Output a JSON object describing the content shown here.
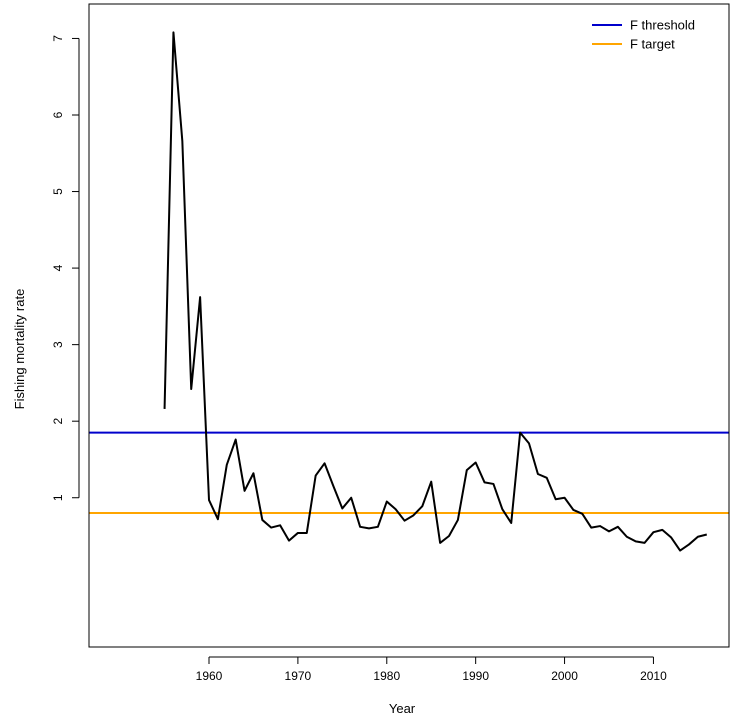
{
  "chart_data": {
    "type": "line",
    "title": "",
    "xlabel": "Year",
    "ylabel": "Fishing mortality rate",
    "xlim": [
      1946.5,
      2018.5
    ],
    "ylim": [
      -0.95,
      7.45
    ],
    "x_ticks": [
      1960,
      1970,
      1980,
      1990,
      2000,
      2010
    ],
    "y_ticks": [
      1,
      2,
      3,
      4,
      5,
      6,
      7
    ],
    "grid": false,
    "legend_position": "top-right",
    "series": [
      {
        "color": "#000000",
        "x": [
          1955,
          1956,
          1957,
          1958,
          1959,
          1960,
          1961,
          1962,
          1963,
          1964,
          1965,
          1966,
          1967,
          1968,
          1969,
          1970,
          1971,
          1972,
          1973,
          1974,
          1975,
          1976,
          1977,
          1978,
          1979,
          1980,
          1981,
          1982,
          1983,
          1984,
          1985,
          1986,
          1987,
          1988,
          1989,
          1990,
          1991,
          1992,
          1993,
          1994,
          1995,
          1996,
          1997,
          1998,
          1999,
          2000,
          2001,
          2002,
          2003,
          2004,
          2005,
          2006,
          2007,
          2008,
          2009,
          2010,
          2011,
          2012,
          2013,
          2014,
          2015,
          2016
        ],
        "y": [
          2.16,
          7.08,
          5.66,
          2.42,
          3.62,
          0.97,
          0.72,
          1.43,
          1.76,
          1.09,
          1.32,
          0.71,
          0.61,
          0.64,
          0.44,
          0.54,
          0.54,
          1.29,
          1.45,
          1.15,
          0.86,
          1.0,
          0.62,
          0.6,
          0.62,
          0.95,
          0.85,
          0.7,
          0.77,
          0.89,
          1.21,
          0.41,
          0.5,
          0.71,
          1.36,
          1.46,
          1.2,
          1.18,
          0.85,
          0.67,
          1.85,
          1.71,
          1.31,
          1.26,
          0.98,
          1.0,
          0.84,
          0.79,
          0.61,
          0.63,
          0.56,
          0.62,
          0.49,
          0.43,
          0.41,
          0.55,
          0.58,
          0.48,
          0.31,
          0.39,
          0.49,
          0.52
        ]
      }
    ],
    "reference_lines": [
      {
        "name": "F threshold",
        "value": 1.85,
        "color": "#0000cc"
      },
      {
        "name": "F target",
        "value": 0.8,
        "color": "#ffa500"
      }
    ]
  }
}
